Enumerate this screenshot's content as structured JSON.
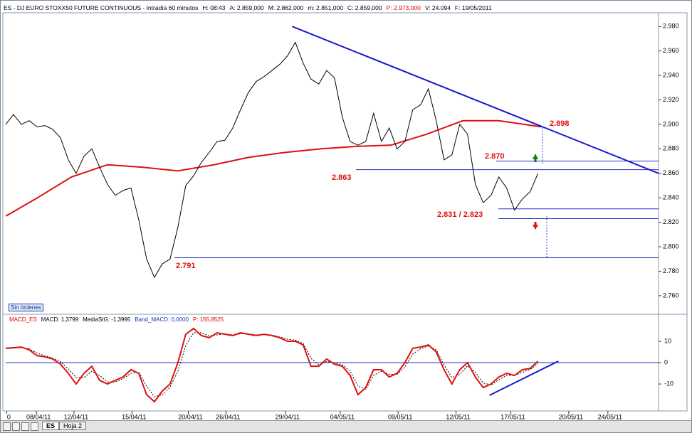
{
  "header": [
    {
      "text": "ES - DJ EURO STOXX50 FUTURE CONTINUOUS - Intradía 60 minutos",
      "color": "#000000"
    },
    {
      "text": "H: 08:43",
      "color": "#000000"
    },
    {
      "text": "A: 2.859,000",
      "color": "#000000"
    },
    {
      "text": "M: 2.862,000",
      "color": "#000000"
    },
    {
      "text": "m: 2.851,000",
      "color": "#000000"
    },
    {
      "text": "C: 2.859,000",
      "color": "#000000"
    },
    {
      "text": "P: 2.973,000",
      "color": "#e00000"
    },
    {
      "text": "V: 24.094",
      "color": "#000000"
    },
    {
      "text": "F: 19/05/2011",
      "color": "#000000"
    }
  ],
  "macd_header": [
    {
      "text": "MACD_ES",
      "color": "#e00000"
    },
    {
      "text": "MACD: 1,3799",
      "color": "#000000"
    },
    {
      "text": "MediaSIG: -1,3995",
      "color": "#000000"
    },
    {
      "text": "Band_MACD: 0,0000",
      "color": "#2030c0"
    },
    {
      "text": "P: 155,8525",
      "color": "#e00000"
    }
  ],
  "status_button": "Sin órdenes",
  "tabs": [
    "ES",
    "Hoja 2"
  ],
  "chart_data": [
    {
      "type": "line",
      "color": "#000000",
      "x": [
        0,
        5,
        10,
        15,
        20,
        25,
        30,
        35,
        40,
        45,
        50,
        55,
        60,
        65,
        70,
        75,
        80,
        85,
        90,
        95,
        100,
        105,
        110,
        115,
        120,
        125,
        130,
        135,
        140,
        145,
        150,
        155,
        160,
        165,
        170,
        175,
        180,
        185,
        190,
        195,
        200,
        205,
        210,
        215,
        220,
        225,
        230,
        235,
        240,
        245,
        250,
        255,
        260,
        265,
        270,
        275,
        280,
        285,
        290,
        295,
        300,
        305,
        310,
        315,
        320,
        325,
        330,
        335,
        340
      ],
      "values": [
        2.9,
        2.908,
        2.9,
        2.903,
        2.898,
        2.899,
        2.896,
        2.889,
        2.871,
        2.86,
        2.874,
        2.88,
        2.865,
        2.851,
        2.842,
        2.846,
        2.848,
        2.822,
        2.79,
        2.775,
        2.786,
        2.79,
        2.816,
        2.85,
        2.858,
        2.869,
        2.877,
        2.886,
        2.887,
        2.897,
        2.912,
        2.926,
        2.935,
        2.939,
        2.944,
        2.949,
        2.956,
        2.967,
        2.95,
        2.937,
        2.933,
        2.944,
        2.938,
        2.906,
        2.886,
        2.883,
        2.886,
        2.909,
        2.886,
        2.897,
        2.88,
        2.886,
        2.912,
        2.916,
        2.929,
        2.903,
        2.871,
        2.875,
        2.9,
        2.892,
        2.851,
        2.836,
        2.842,
        2.857,
        2.848,
        2.83,
        2.839,
        2.845,
        2.86
      ],
      "moving_average": {
        "color": "#dd1010",
        "x": [
          0,
          19,
          42,
          65,
          87,
          110,
          133,
          155,
          178,
          201,
          224,
          246,
          269,
          292,
          315,
          342
        ],
        "values": [
          2.825,
          2.839,
          2.857,
          2.867,
          2.865,
          2.862,
          2.867,
          2.873,
          2.877,
          2.88,
          2.882,
          2.883,
          2.892,
          2.903,
          2.903,
          2.898
        ]
      },
      "trendline": {
        "color": "#1a1acc",
        "x": [
          183,
          417
        ],
        "values": [
          2.98,
          2.86
        ]
      },
      "levels": [
        2.87,
        2.863,
        2.831,
        2.823,
        2.791
      ],
      "annotations": [
        "2.898",
        "2.870",
        "2.863",
        "2.831 / 2.823",
        "2.791"
      ],
      "xlim": [
        0,
        417
      ],
      "ylim": [
        2.746,
        2.99
      ],
      "xticks": [
        {
          "value": 2,
          "label": "0"
        },
        {
          "value": 21,
          "label": "08/04/11"
        },
        {
          "value": 45,
          "label": "12/04/11"
        },
        {
          "value": 82,
          "label": "15/04/11"
        },
        {
          "value": 118,
          "label": "20/04/11"
        },
        {
          "value": 142,
          "label": "26/04/11"
        },
        {
          "value": 180,
          "label": "29/04/11"
        },
        {
          "value": 215,
          "label": "04/05/11"
        },
        {
          "value": 252,
          "label": "09/05/11"
        },
        {
          "value": 289,
          "label": "12/05/11"
        },
        {
          "value": 324,
          "label": "17/05/11"
        },
        {
          "value": 361,
          "label": "20/05/11"
        },
        {
          "value": 386,
          "label": "24/05/11"
        }
      ],
      "yticks": [
        {
          "value": 2.76,
          "label": "2.760"
        },
        {
          "value": 2.78,
          "label": "2.780"
        },
        {
          "value": 2.8,
          "label": "2.800"
        },
        {
          "value": 2.82,
          "label": "2.820"
        },
        {
          "value": 2.84,
          "label": "2.840"
        },
        {
          "value": 2.86,
          "label": "2.860"
        },
        {
          "value": 2.88,
          "label": "2.880"
        },
        {
          "value": 2.9,
          "label": "2.900"
        },
        {
          "value": 2.92,
          "label": "2.920"
        },
        {
          "value": 2.94,
          "label": "2.940"
        },
        {
          "value": 2.96,
          "label": "2.960"
        },
        {
          "value": 2.98,
          "label": "2.980"
        }
      ]
    },
    {
      "type": "line",
      "color": "#dd1010",
      "x": [
        0,
        5,
        10,
        15,
        20,
        25,
        30,
        35,
        40,
        45,
        50,
        55,
        60,
        65,
        70,
        75,
        80,
        85,
        90,
        95,
        100,
        105,
        110,
        115,
        120,
        125,
        130,
        135,
        140,
        145,
        150,
        155,
        160,
        165,
        170,
        175,
        180,
        185,
        190,
        195,
        200,
        205,
        210,
        215,
        220,
        225,
        230,
        235,
        240,
        245,
        250,
        255,
        260,
        265,
        270,
        275,
        280,
        285,
        290,
        295,
        300,
        305,
        310,
        315,
        320,
        325,
        330,
        335,
        340
      ],
      "values": [
        6.7,
        7,
        7.3,
        6,
        3.3,
        2.7,
        1.7,
        -0.7,
        -5,
        -10,
        -5,
        -1.7,
        -8.3,
        -10,
        -8.3,
        -6.7,
        -3.3,
        -5,
        -15,
        -18.3,
        -13.3,
        -10,
        0,
        13.3,
        16,
        12.7,
        11.7,
        14,
        13.3,
        12.7,
        14,
        13.3,
        12.7,
        13.3,
        12.7,
        11.7,
        10,
        10,
        8.3,
        -1.7,
        -1.7,
        1.7,
        -0.7,
        -1.7,
        -6,
        -15,
        -11.7,
        -3.3,
        -3.3,
        -6.7,
        -5,
        0,
        6.7,
        7.3,
        8.3,
        5,
        -3.3,
        -10,
        -3.3,
        0,
        -6.7,
        -11.7,
        -10,
        -6.7,
        -5,
        -6,
        -3.3,
        -2.7,
        0.7
      ],
      "signal": {
        "color": "#000000",
        "values": [
          6.5,
          6.8,
          7,
          6.5,
          4.5,
          3.2,
          2.2,
          0.5,
          -3,
          -7,
          -7,
          -4,
          -6,
          -9,
          -9,
          -7.5,
          -5,
          -4.5,
          -11,
          -16,
          -15,
          -11.5,
          -4,
          8,
          14,
          14,
          12.5,
          13,
          13.5,
          13,
          13.5,
          13.5,
          13,
          13,
          13,
          12,
          11,
          10.5,
          9,
          2,
          -1,
          0.5,
          0,
          -1,
          -4,
          -11,
          -12.5,
          -6,
          -4,
          -5.5,
          -5.5,
          -2,
          4,
          6.5,
          7.8,
          6,
          -1,
          -7,
          -5.5,
          -1.5,
          -4.5,
          -9.5,
          -10.5,
          -8,
          -6,
          -6,
          -4.5,
          -3.2,
          -0.5
        ]
      },
      "trendline": {
        "color": "#1a1acc",
        "x": [
          309,
          353
        ],
        "values": [
          -15.3,
          0.7
        ]
      },
      "zero_line": 0,
      "xlim": [
        0,
        417
      ],
      "ylim": [
        -22.3,
        21
      ],
      "yticks": [
        -10,
        0,
        10
      ]
    }
  ]
}
